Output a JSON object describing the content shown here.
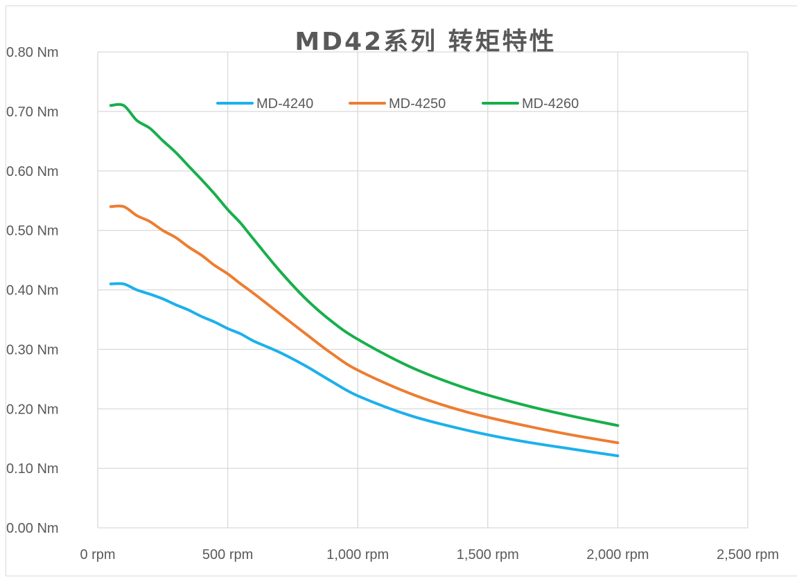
{
  "chart_data": {
    "type": "line",
    "title": "MD42系列 转矩特性",
    "xlabel": "",
    "ylabel": "",
    "xlim": [
      0,
      2500
    ],
    "ylim": [
      0,
      0.8
    ],
    "x_ticks": [
      0,
      500,
      1000,
      1500,
      2000,
      2500
    ],
    "x_tick_labels": [
      "0 rpm",
      "500 rpm",
      "1,000 rpm",
      "1,500 rpm",
      "2,000 rpm",
      "2,500 rpm"
    ],
    "y_ticks": [
      0,
      0.1,
      0.2,
      0.3,
      0.4,
      0.5,
      0.6,
      0.7,
      0.8
    ],
    "y_tick_labels": [
      "0.00 Nm",
      "0.10 Nm",
      "0.20 Nm",
      "0.30 Nm",
      "0.40 Nm",
      "0.50 Nm",
      "0.60 Nm",
      "0.70 Nm",
      "0.80 Nm"
    ],
    "grid": true,
    "legend_position": "top",
    "series": [
      {
        "name": "MD-4240",
        "color": "#1CB0EC",
        "x": [
          50,
          100,
          150,
          200,
          250,
          300,
          350,
          400,
          450,
          500,
          550,
          600,
          700,
          800,
          900,
          1000,
          1200,
          1400,
          1600,
          1800,
          2000
        ],
        "y": [
          0.41,
          0.41,
          0.4,
          0.393,
          0.385,
          0.375,
          0.366,
          0.355,
          0.346,
          0.335,
          0.326,
          0.314,
          0.295,
          0.272,
          0.246,
          0.222,
          0.189,
          0.166,
          0.148,
          0.134,
          0.121
        ]
      },
      {
        "name": "MD-4250",
        "color": "#ED7D31",
        "x": [
          50,
          100,
          150,
          200,
          250,
          300,
          350,
          400,
          450,
          500,
          550,
          600,
          700,
          800,
          900,
          1000,
          1200,
          1400,
          1600,
          1800,
          2000
        ],
        "y": [
          0.54,
          0.54,
          0.525,
          0.515,
          0.5,
          0.488,
          0.472,
          0.458,
          0.441,
          0.427,
          0.41,
          0.394,
          0.36,
          0.326,
          0.293,
          0.265,
          0.226,
          0.197,
          0.176,
          0.158,
          0.143
        ]
      },
      {
        "name": "MD-4260",
        "color": "#17AF4B",
        "x": [
          50,
          100,
          150,
          200,
          250,
          300,
          350,
          400,
          450,
          500,
          550,
          600,
          700,
          800,
          900,
          1000,
          1200,
          1400,
          1600,
          1800,
          2000
        ],
        "y": [
          0.71,
          0.71,
          0.685,
          0.672,
          0.651,
          0.631,
          0.608,
          0.585,
          0.561,
          0.535,
          0.512,
          0.485,
          0.432,
          0.385,
          0.347,
          0.317,
          0.271,
          0.237,
          0.211,
          0.19,
          0.172
        ]
      }
    ]
  }
}
